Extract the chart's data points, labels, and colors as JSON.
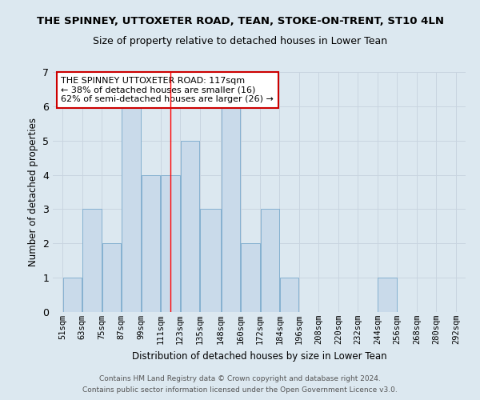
{
  "title": "THE SPINNEY, UTTOXETER ROAD, TEAN, STOKE-ON-TRENT, ST10 4LN",
  "subtitle": "Size of property relative to detached houses in Lower Tean",
  "xlabel": "Distribution of detached houses by size in Lower Tean",
  "ylabel": "Number of detached properties",
  "bin_labels": [
    "51sqm",
    "63sqm",
    "75sqm",
    "87sqm",
    "99sqm",
    "111sqm",
    "123sqm",
    "135sqm",
    "148sqm",
    "160sqm",
    "172sqm",
    "184sqm",
    "196sqm",
    "208sqm",
    "220sqm",
    "232sqm",
    "244sqm",
    "256sqm",
    "268sqm",
    "280sqm",
    "292sqm"
  ],
  "bin_edges": [
    51,
    63,
    75,
    87,
    99,
    111,
    123,
    135,
    148,
    160,
    172,
    184,
    196,
    208,
    220,
    232,
    244,
    256,
    268,
    280,
    292
  ],
  "bar_heights": [
    1,
    3,
    2,
    6,
    4,
    4,
    5,
    3,
    6,
    2,
    3,
    1,
    0,
    0,
    0,
    0,
    1,
    0,
    0,
    0
  ],
  "bar_color": "#c9daea",
  "bar_edgecolor": "#7aaacc",
  "reference_line_x": 117,
  "ylim": [
    0,
    7
  ],
  "yticks": [
    0,
    1,
    2,
    3,
    4,
    5,
    6,
    7
  ],
  "annotation_title": "THE SPINNEY UTTOXETER ROAD: 117sqm",
  "annotation_line1": "← 38% of detached houses are smaller (16)",
  "annotation_line2": "62% of semi-detached houses are larger (26) →",
  "annotation_box_facecolor": "#ffffff",
  "annotation_box_edgecolor": "#cc0000",
  "grid_color": "#c8d4e0",
  "background_color": "#dce8f0",
  "title_fontsize": 9.5,
  "subtitle_fontsize": 9,
  "footer1": "Contains HM Land Registry data © Crown copyright and database right 2024.",
  "footer2": "Contains public sector information licensed under the Open Government Licence v3.0."
}
